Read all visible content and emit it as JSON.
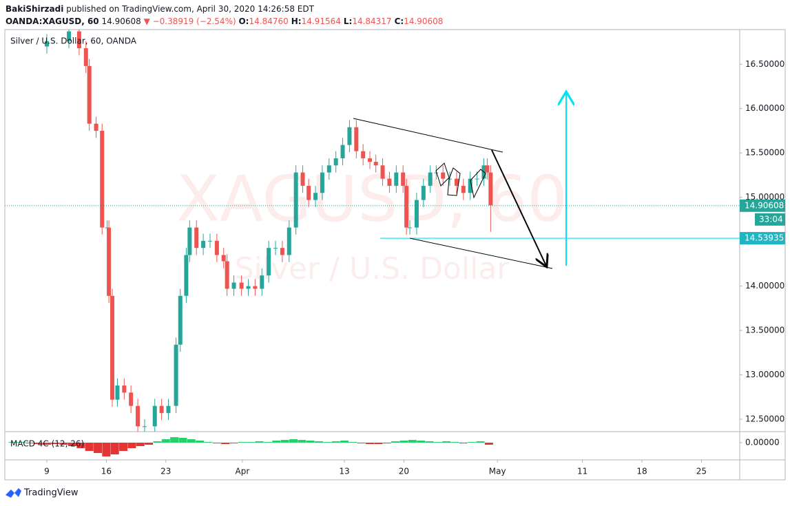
{
  "header": {
    "author": "BakiShirzadi",
    "published": "published on TradingView.com, April 30, 2020 14:26:58 EDT",
    "symbol": "OANDA:XAGUSD, 60",
    "last": "14.90608",
    "change": "▼ −0.38919 (−2.54%)",
    "ohlc": [
      {
        "label": "O:",
        "value": "14.84760"
      },
      {
        "label": "H:",
        "value": "14.91564"
      },
      {
        "label": "L:",
        "value": "14.84317"
      },
      {
        "label": "C:",
        "value": "14.90608"
      }
    ]
  },
  "chart_data": {
    "type": "candlestick",
    "legend": "Silver / U.S. Dollar, 60, OANDA",
    "watermark": [
      "XAGUSD, 60",
      "Silver / U.S. Dollar"
    ],
    "up_color": "#26a69a",
    "down_color": "#ef5350",
    "x": [
      9.0,
      11.6,
      12.8,
      13.6,
      14.0,
      14.8,
      15.5,
      16.1,
      16.3,
      16.7,
      17.3,
      18.1,
      18.9,
      19.7,
      20.5,
      21.7,
      22.5,
      23.3,
      24.2,
      24.7,
      25.4,
      25.8,
      26.6,
      27.4,
      28.2,
      29.0,
      29.8,
      30.2,
      31.0,
      31.9,
      32.7,
      33.5,
      34.3,
      35.1,
      35.9,
      36.7,
      37.5,
      38.3,
      39.1,
      39.8,
      40.6,
      41.4,
      42.2,
      43.0,
      43.8,
      44.6,
      45.4,
      46.2,
      47.0,
      47.7,
      48.5,
      49.3,
      50.1,
      50.9,
      51.3,
      51.7,
      52.5,
      53.3,
      54.1,
      54.8,
      55.6,
      56.4,
      57.2,
      58.0,
      58.8,
      59.6,
      60.4,
      60.8,
      61.2
    ],
    "open": [
      16.7,
      16.76,
      16.87,
      16.68,
      16.48,
      15.83,
      15.75,
      14.66,
      14.66,
      13.89,
      12.72,
      12.88,
      12.8,
      12.65,
      12.42,
      12.42,
      12.65,
      12.57,
      12.65,
      13.34,
      13.89,
      14.35,
      14.66,
      14.43,
      14.51,
      14.51,
      14.35,
      14.28,
      13.97,
      14.04,
      13.97,
      14.0,
      13.97,
      14.12,
      14.43,
      14.43,
      14.35,
      14.66,
      15.28,
      15.13,
      14.97,
      15.05,
      15.28,
      15.36,
      15.44,
      15.59,
      15.79,
      15.52,
      15.44,
      15.4,
      15.36,
      15.21,
      15.13,
      15.28,
      15.13,
      14.66,
      14.66,
      14.97,
      15.13,
      15.28,
      15.28,
      15.21,
      15.21,
      15.13,
      15.05,
      15.21,
      15.21,
      15.36,
      15.28
    ],
    "high": [
      16.84,
      16.95,
      16.95,
      16.76,
      16.56,
      15.91,
      15.83,
      14.74,
      14.74,
      13.97,
      12.96,
      12.96,
      12.88,
      12.73,
      12.5,
      12.73,
      12.73,
      12.73,
      13.42,
      13.97,
      14.43,
      14.74,
      14.74,
      14.59,
      14.59,
      14.59,
      14.43,
      14.36,
      14.12,
      14.12,
      14.08,
      14.08,
      14.2,
      14.51,
      14.51,
      14.51,
      14.74,
      15.36,
      15.36,
      15.21,
      15.13,
      15.36,
      15.44,
      15.52,
      15.67,
      15.87,
      15.87,
      15.6,
      15.52,
      15.48,
      15.44,
      15.29,
      15.36,
      15.36,
      15.21,
      14.74,
      15.05,
      15.21,
      15.36,
      15.36,
      15.36,
      15.29,
      15.29,
      15.21,
      15.29,
      15.29,
      15.44,
      15.44,
      15.36
    ],
    "low": [
      16.62,
      16.68,
      16.6,
      16.4,
      15.75,
      15.67,
      14.58,
      14.58,
      13.81,
      12.64,
      12.64,
      12.72,
      12.57,
      12.34,
      12.34,
      12.34,
      12.49,
      12.49,
      12.57,
      13.26,
      13.81,
      14.27,
      14.35,
      14.35,
      14.43,
      14.27,
      14.2,
      13.89,
      13.89,
      13.89,
      13.89,
      13.89,
      13.89,
      14.04,
      14.35,
      14.27,
      14.27,
      14.58,
      15.05,
      14.89,
      14.89,
      14.97,
      15.2,
      15.28,
      15.36,
      15.51,
      15.44,
      15.36,
      15.32,
      15.28,
      15.13,
      15.05,
      15.05,
      15.05,
      14.58,
      14.58,
      14.58,
      14.89,
      15.05,
      15.2,
      15.13,
      15.13,
      15.05,
      14.97,
      14.97,
      15.13,
      15.13,
      15.2,
      14.61
    ],
    "close": [
      16.76,
      16.87,
      16.68,
      16.48,
      15.83,
      15.75,
      14.66,
      14.66,
      13.89,
      12.72,
      12.88,
      12.8,
      12.65,
      12.42,
      12.42,
      12.65,
      12.57,
      12.65,
      13.34,
      13.89,
      14.35,
      14.66,
      14.43,
      14.51,
      14.51,
      14.35,
      14.28,
      13.97,
      14.04,
      13.97,
      14.0,
      13.97,
      14.12,
      14.43,
      14.43,
      14.35,
      14.66,
      15.28,
      15.13,
      14.97,
      15.05,
      15.28,
      15.36,
      15.44,
      15.59,
      15.79,
      15.52,
      15.44,
      15.4,
      15.36,
      15.21,
      15.13,
      15.28,
      15.13,
      14.66,
      14.66,
      14.97,
      15.13,
      15.28,
      15.28,
      15.21,
      15.21,
      15.13,
      15.05,
      15.21,
      15.21,
      15.36,
      15.28,
      14.91
    ],
    "xlim": [
      4.06,
      90.5
    ],
    "xticks": [
      {
        "value": 9,
        "label": "9"
      },
      {
        "value": 16,
        "label": "16"
      },
      {
        "value": 23,
        "label": "23"
      },
      {
        "value": 32,
        "label": "Apr"
      },
      {
        "value": 44,
        "label": "13"
      },
      {
        "value": 51,
        "label": "20"
      },
      {
        "value": 62,
        "label": "May"
      },
      {
        "value": 72,
        "label": "11"
      },
      {
        "value": 79,
        "label": "18"
      },
      {
        "value": 86,
        "label": "25"
      }
    ],
    "ylim": [
      12.36,
      16.89
    ],
    "yticks": [
      {
        "value": 12.5,
        "label": "12.50000"
      },
      {
        "value": 13,
        "label": "13.00000"
      },
      {
        "value": 13.5,
        "label": "13.50000"
      },
      {
        "value": 14,
        "label": "14.00000"
      },
      {
        "value": 14.5,
        "label": "14.50000"
      },
      {
        "value": 15,
        "label": "15.00000"
      },
      {
        "value": 15.5,
        "label": "15.50000"
      },
      {
        "value": 16,
        "label": "16.00000"
      },
      {
        "value": 16.5,
        "label": "16.50000"
      }
    ],
    "price_line": {
      "value": 14.90608,
      "countdown": "33:04",
      "color": "#26a69a"
    },
    "level": {
      "value": 14.53935,
      "color": "#00e5f0",
      "label_color": "#1fb5c1"
    },
    "macd": {
      "label": "MACD 4C (12, 26)",
      "up_color": "#00c853",
      "down_color": "#e01010",
      "ylim": [
        -0.25,
        0.16
      ],
      "yticks": [
        {
          "value": 0,
          "label": "0.00000"
        }
      ],
      "x": [
        5,
        6,
        7,
        8,
        9,
        10,
        11,
        12,
        13,
        14,
        15,
        16,
        17,
        18,
        19,
        20,
        21,
        22,
        23,
        24,
        25,
        26,
        27,
        28,
        29,
        30,
        31,
        32,
        33,
        34,
        35,
        36,
        37,
        38,
        39,
        40,
        41,
        42,
        43,
        44,
        45,
        46,
        47,
        48,
        49,
        50,
        51,
        52,
        53,
        54,
        55,
        56,
        57,
        58,
        59,
        60,
        61
      ],
      "values": [
        0.01,
        0.01,
        -0.01,
        -0.02,
        -0.03,
        -0.02,
        -0.03,
        -0.05,
        -0.08,
        -0.12,
        -0.15,
        -0.2,
        -0.17,
        -0.12,
        -0.08,
        -0.05,
        -0.03,
        0.02,
        0.05,
        0.08,
        0.07,
        0.05,
        0.03,
        0.01,
        -0.01,
        -0.02,
        -0.01,
        0.01,
        0.01,
        0.02,
        0.01,
        0.03,
        0.04,
        0.05,
        0.04,
        0.03,
        0.02,
        0.01,
        0.02,
        0.03,
        0.01,
        -0.01,
        -0.02,
        -0.02,
        -0.01,
        0.02,
        0.03,
        0.04,
        0.03,
        0.02,
        0.01,
        0.02,
        0.01,
        -0.01,
        0.01,
        0.02,
        -0.03
      ]
    }
  },
  "footer": {
    "brand": "TradingView"
  }
}
